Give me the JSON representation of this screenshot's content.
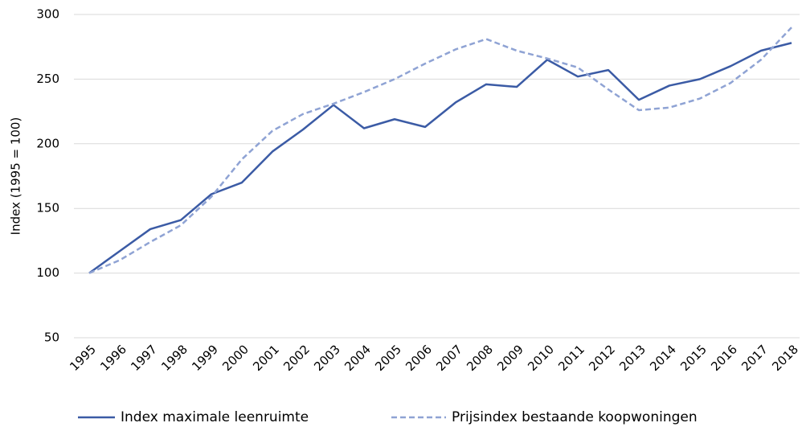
{
  "chart_data": {
    "type": "line",
    "y_label": "Index (1995 = 100)",
    "categories": [
      "1995",
      "1996",
      "1997",
      "1998",
      "1999",
      "2000",
      "2001",
      "2002",
      "2003",
      "2004",
      "2005",
      "2006",
      "2007",
      "2008",
      "2009",
      "2010",
      "2011",
      "2012",
      "2013",
      "2014",
      "2015",
      "2016",
      "2017",
      "2018"
    ],
    "series": [
      {
        "name": "Index maximale leenruimte",
        "color": "#3b5ba5",
        "dash": false,
        "values": [
          100,
          117,
          134,
          141,
          161,
          170,
          194,
          211,
          230,
          212,
          219,
          213,
          232,
          246,
          244,
          265,
          252,
          257,
          234,
          245,
          250,
          260,
          272,
          278
        ]
      },
      {
        "name": "Prijsindex bestaande koopwoningen",
        "color": "#8fa3d4",
        "dash": true,
        "values": [
          100,
          110,
          124,
          137,
          159,
          188,
          210,
          223,
          231,
          240,
          250,
          262,
          273,
          281,
          272,
          266,
          259,
          242,
          226,
          228,
          235,
          247,
          265,
          290
        ]
      }
    ],
    "ylim": [
      50,
      300
    ],
    "yticks": [
      50,
      100,
      150,
      200,
      250,
      300
    ],
    "grid": true,
    "legend": "bottom"
  }
}
